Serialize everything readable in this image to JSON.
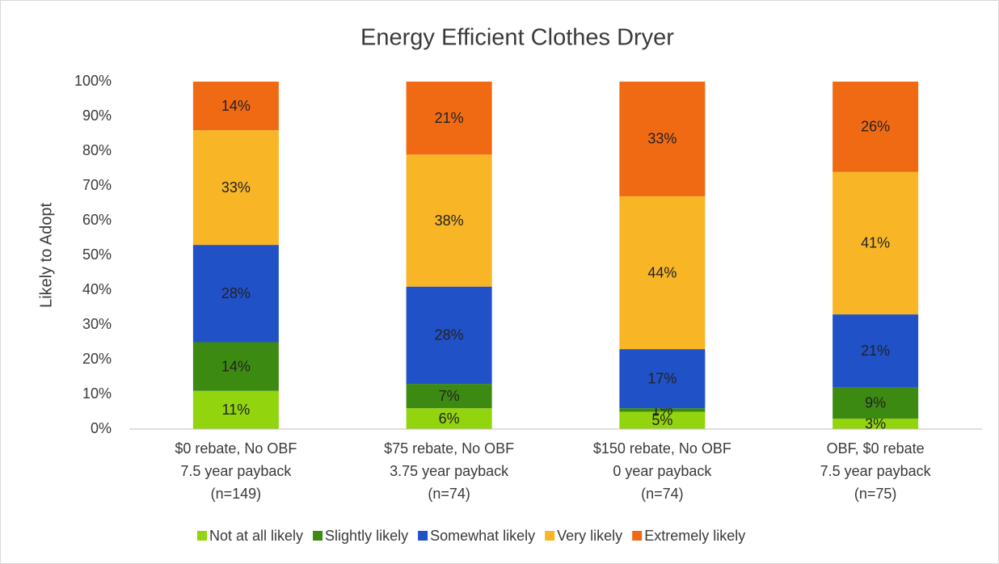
{
  "chart_data": {
    "type": "stacked_bar",
    "title": "Energy Efficient Clothes Dryer",
    "y_label": "Likely to Adopt",
    "categories": [
      [
        "$0 rebate, No OBF",
        "7.5 year payback",
        "(n=149)"
      ],
      [
        "$75 rebate, No OBF",
        "3.75 year payback",
        "(n=74)"
      ],
      [
        "$150 rebate, No OBF",
        "0 year payback",
        "(n=74)"
      ],
      [
        "OBF, $0 rebate",
        "7.5 year payback",
        "(n=75)"
      ]
    ],
    "series": [
      {
        "name": "Not at all likely",
        "color": "#92d40e",
        "values": [
          11,
          6,
          5,
          3
        ],
        "value_labels": [
          "11%",
          "6%",
          "5%",
          "3%"
        ]
      },
      {
        "name": "Slightly likely",
        "color": "#3d8a12",
        "values": [
          14,
          7,
          1,
          9
        ],
        "value_labels": [
          "14%",
          "7%",
          "1%",
          "9%"
        ]
      },
      {
        "name": "Somewhat likely",
        "color": "#2151c7",
        "values": [
          28,
          28,
          17,
          21
        ],
        "value_labels": [
          "28%",
          "28%",
          "17%",
          "21%"
        ]
      },
      {
        "name": "Very likely",
        "color": "#f8b526",
        "values": [
          33,
          38,
          44,
          41
        ],
        "value_labels": [
          "33%",
          "38%",
          "44%",
          "41%"
        ]
      },
      {
        "name": "Extremely likely",
        "color": "#f06a14",
        "values": [
          14,
          21,
          33,
          26
        ],
        "value_labels": [
          "14%",
          "21%",
          "33%",
          "26%"
        ]
      }
    ],
    "ylim": [
      0,
      100
    ],
    "yticks": [
      {
        "value": 0,
        "label": "0%"
      },
      {
        "value": 10,
        "label": "10%"
      },
      {
        "value": 20,
        "label": "20%"
      },
      {
        "value": 30,
        "label": "30%"
      },
      {
        "value": 40,
        "label": "40%"
      },
      {
        "value": 50,
        "label": "50%"
      },
      {
        "value": 60,
        "label": "60%"
      },
      {
        "value": 70,
        "label": "70%"
      },
      {
        "value": 80,
        "label": "80%"
      },
      {
        "value": 90,
        "label": "90%"
      },
      {
        "value": 100,
        "label": "100%"
      }
    ],
    "grid": false,
    "legend": "bottom"
  }
}
